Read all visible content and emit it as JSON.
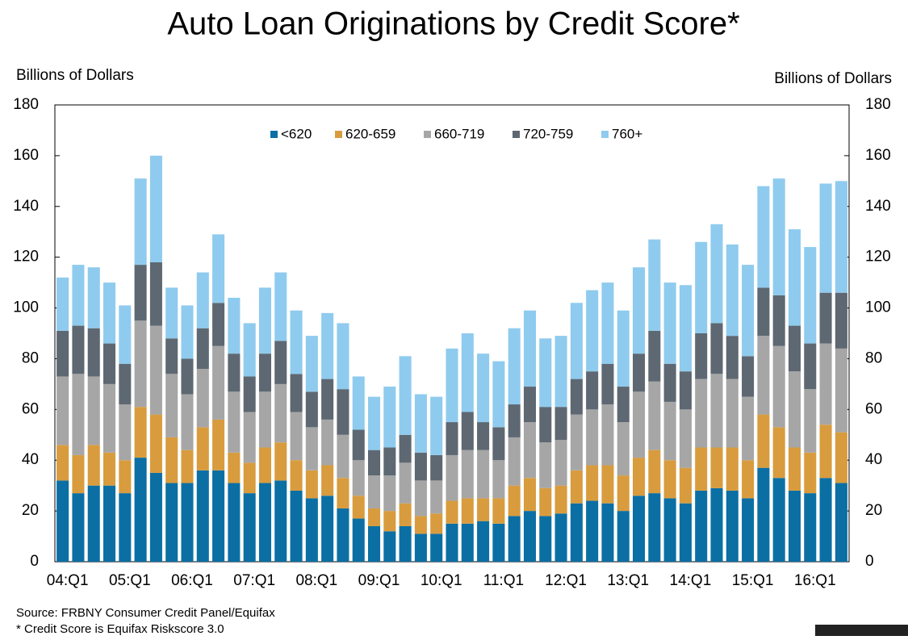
{
  "chart_data": {
    "type": "stacked_bar",
    "title": "Auto Loan Originations by Credit Score*",
    "y_label": "Billions of Dollars",
    "y2_label": "Billions of Dollars",
    "source": "Source: FRBNY Consumer Credit Panel/Equifax",
    "footnote": "* Credit Score is Equifax Riskscore 3.0",
    "categories": [
      "04:Q1",
      null,
      null,
      null,
      "05:Q1",
      null,
      null,
      null,
      "06:Q1",
      null,
      null,
      null,
      "07:Q1",
      null,
      null,
      null,
      "08:Q1",
      null,
      null,
      null,
      "09:Q1",
      null,
      null,
      null,
      "10:Q1",
      null,
      null,
      null,
      "11:Q1",
      null,
      null,
      null,
      "12:Q1",
      null,
      null,
      null,
      "13:Q1",
      null,
      null,
      null,
      "14:Q1",
      null,
      null,
      null,
      "15:Q1",
      null,
      null,
      null,
      "16:Q1",
      null,
      null
    ],
    "series": [
      {
        "name": "<620",
        "color": "#0b6fa4",
        "values": [
          32,
          27,
          30,
          30,
          27,
          41,
          35,
          31,
          31,
          36,
          36,
          31,
          27,
          31,
          32,
          28,
          25,
          26,
          21,
          17,
          14,
          12,
          14,
          11,
          11,
          15,
          15,
          16,
          15,
          18,
          20,
          18,
          19,
          23,
          24,
          23,
          20,
          26,
          27,
          25,
          23,
          28,
          29,
          28,
          25,
          37,
          33,
          28,
          27,
          33,
          31
        ]
      },
      {
        "name": "620-659",
        "color": "#d89c3e",
        "values": [
          14,
          15,
          16,
          13,
          13,
          20,
          23,
          18,
          13,
          17,
          20,
          12,
          12,
          14,
          15,
          12,
          11,
          12,
          12,
          9,
          7,
          8,
          9,
          7,
          8,
          9,
          10,
          9,
          10,
          12,
          13,
          11,
          11,
          13,
          14,
          15,
          14,
          15,
          17,
          15,
          14,
          17,
          16,
          17,
          15,
          21,
          20,
          17,
          16,
          21,
          20
        ]
      },
      {
        "name": "660-719",
        "color": "#a6a6a6",
        "values": [
          27,
          32,
          27,
          27,
          22,
          34,
          35,
          25,
          22,
          23,
          29,
          24,
          20,
          22,
          23,
          19,
          17,
          18,
          17,
          14,
          13,
          14,
          16,
          14,
          13,
          18,
          19,
          19,
          15,
          19,
          22,
          18,
          18,
          22,
          22,
          24,
          21,
          26,
          27,
          23,
          23,
          27,
          29,
          27,
          25,
          31,
          32,
          30,
          25,
          32,
          33
        ]
      },
      {
        "name": "720-759",
        "color": "#5e6872",
        "values": [
          18,
          19,
          19,
          16,
          16,
          22,
          25,
          14,
          14,
          16,
          17,
          15,
          14,
          15,
          17,
          15,
          14,
          16,
          18,
          12,
          10,
          11,
          11,
          11,
          10,
          13,
          15,
          11,
          13,
          13,
          14,
          14,
          13,
          14,
          15,
          16,
          14,
          15,
          20,
          15,
          15,
          18,
          20,
          17,
          16,
          19,
          20,
          18,
          18,
          20,
          22
        ]
      },
      {
        "name": "760+",
        "color": "#8fcbee",
        "values": [
          21,
          24,
          24,
          24,
          23,
          34,
          42,
          20,
          21,
          22,
          27,
          22,
          21,
          26,
          27,
          25,
          22,
          26,
          26,
          21,
          21,
          24,
          31,
          23,
          23,
          29,
          31,
          27,
          26,
          30,
          30,
          27,
          28,
          30,
          32,
          32,
          30,
          34,
          36,
          32,
          34,
          36,
          39,
          36,
          36,
          40,
          46,
          38,
          38,
          43,
          44
        ]
      }
    ],
    "ylim": [
      0,
      180
    ],
    "yticks": [
      0,
      20,
      40,
      60,
      80,
      100,
      120,
      140,
      160,
      180
    ],
    "y2lim": [
      0,
      180
    ],
    "y2ticks": [
      0,
      20,
      40,
      60,
      80,
      100,
      120,
      140,
      160,
      180
    ],
    "legend": "top"
  }
}
